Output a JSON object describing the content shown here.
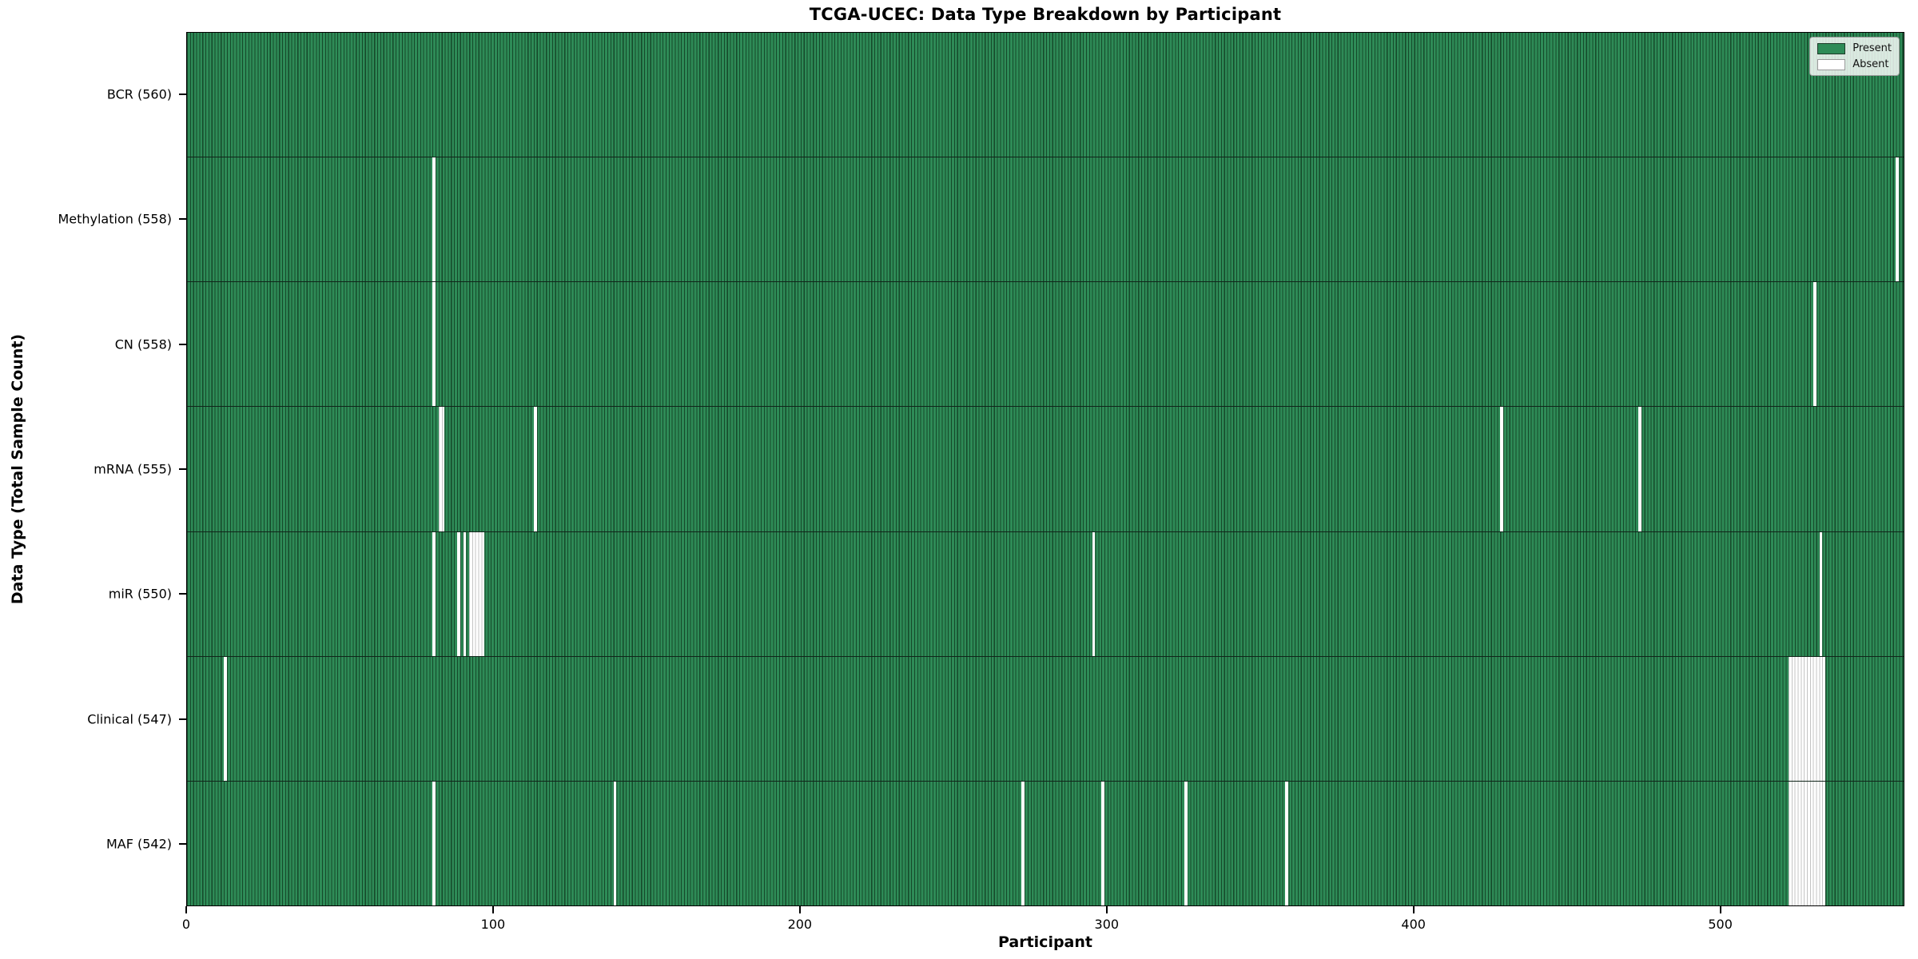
{
  "title": "TCGA-UCEC: Data Type Breakdown by Participant",
  "chart_data": {
    "type": "heatmap",
    "title": "TCGA-UCEC: Data Type Breakdown by Participant",
    "xlabel": "Participant",
    "ylabel": "Data Type (Total Sample Count)",
    "x_ticks": [
      0,
      100,
      200,
      300,
      400,
      500
    ],
    "x_range": [
      0,
      560
    ],
    "n_participants": 560,
    "grid": false,
    "legend": {
      "position": "upper right",
      "entries": [
        {
          "label": "Present",
          "color": "#2e8b57"
        },
        {
          "label": "Absent",
          "color": "#ffffff"
        }
      ]
    },
    "colors": {
      "present_fill": "#2e8b57",
      "bar_edge": "#15492a",
      "absent_fill": "#ffffff",
      "absent_edge": "#c4c4c4",
      "frame": "#000000"
    },
    "rows": [
      {
        "name": "BCR",
        "label": "BCR (560)",
        "present_count": 560,
        "absent_participants": []
      },
      {
        "name": "Methylation",
        "label": "Methylation (558)",
        "present_count": 558,
        "absent_participants": [
          80,
          557
        ]
      },
      {
        "name": "CN",
        "label": "CN (558)",
        "present_count": 558,
        "absent_participants": [
          80,
          530
        ]
      },
      {
        "name": "mRNA",
        "label": "mRNA (555)",
        "present_count": 555,
        "absent_participants": [
          82,
          83,
          113,
          428,
          473
        ]
      },
      {
        "name": "miR",
        "label": "miR (550)",
        "present_count": 550,
        "absent_participants": [
          80,
          88,
          90,
          92,
          93,
          94,
          95,
          96,
          295,
          532
        ]
      },
      {
        "name": "Clinical",
        "label": "Clinical (547)",
        "present_count": 547,
        "absent_participants": [
          12,
          522,
          523,
          524,
          525,
          526,
          527,
          528,
          529,
          530,
          531,
          532,
          533
        ]
      },
      {
        "name": "MAF",
        "label": "MAF (542)",
        "present_count": 542,
        "absent_participants": [
          80,
          139,
          272,
          298,
          325,
          358,
          522,
          523,
          524,
          525,
          526,
          527,
          528,
          529,
          530,
          531,
          532,
          533
        ]
      }
    ]
  }
}
